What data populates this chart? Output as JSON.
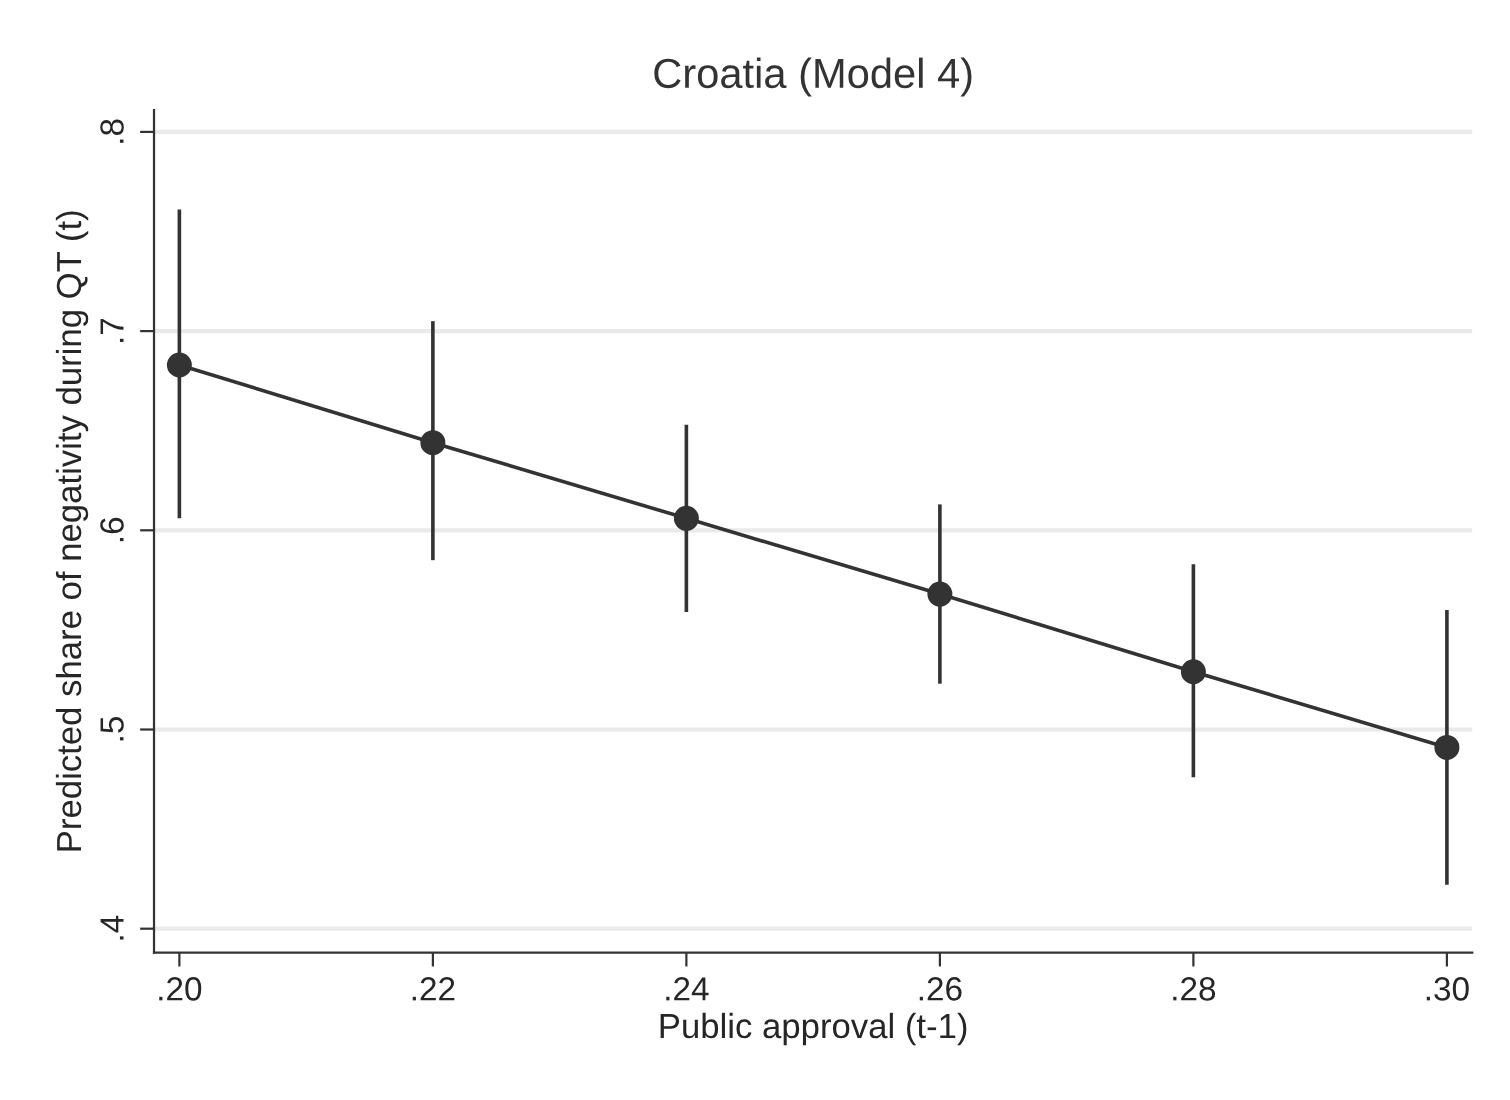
{
  "chart_data": {
    "type": "line",
    "title": "Croatia (Model 4)",
    "xlabel": "Public approval (t-1)",
    "ylabel": "Predicted share of negativity during QT (t)",
    "x": [
      0.2,
      0.22,
      0.24,
      0.26,
      0.28,
      0.3
    ],
    "series": [
      {
        "color": "#333333",
        "values": [
          0.683,
          0.644,
          0.606,
          0.568,
          0.529,
          0.491
        ],
        "errors": [
          [
            0.606,
            0.761
          ],
          [
            0.585,
            0.705
          ],
          [
            0.559,
            0.653
          ],
          [
            0.523,
            0.613
          ],
          [
            0.476,
            0.583
          ],
          [
            0.422,
            0.56
          ]
        ]
      }
    ],
    "marker": "circle",
    "line_style": "solid",
    "grid": "y",
    "xlim": [
      0.198,
      0.302
    ],
    "ylim": [
      0.388,
      0.811
    ],
    "xticks": [
      {
        "value": 0.2,
        "label": ".20"
      },
      {
        "value": 0.22,
        "label": ".22"
      },
      {
        "value": 0.24,
        "label": ".24"
      },
      {
        "value": 0.26,
        "label": ".26"
      },
      {
        "value": 0.28,
        "label": ".28"
      },
      {
        "value": 0.3,
        "label": ".30"
      }
    ],
    "yticks": [
      {
        "value": 0.4,
        "label": ".4"
      },
      {
        "value": 0.5,
        "label": ".5"
      },
      {
        "value": 0.6,
        "label": ".6"
      },
      {
        "value": 0.7,
        "label": ".7"
      },
      {
        "value": 0.8,
        "label": ".8"
      }
    ]
  }
}
